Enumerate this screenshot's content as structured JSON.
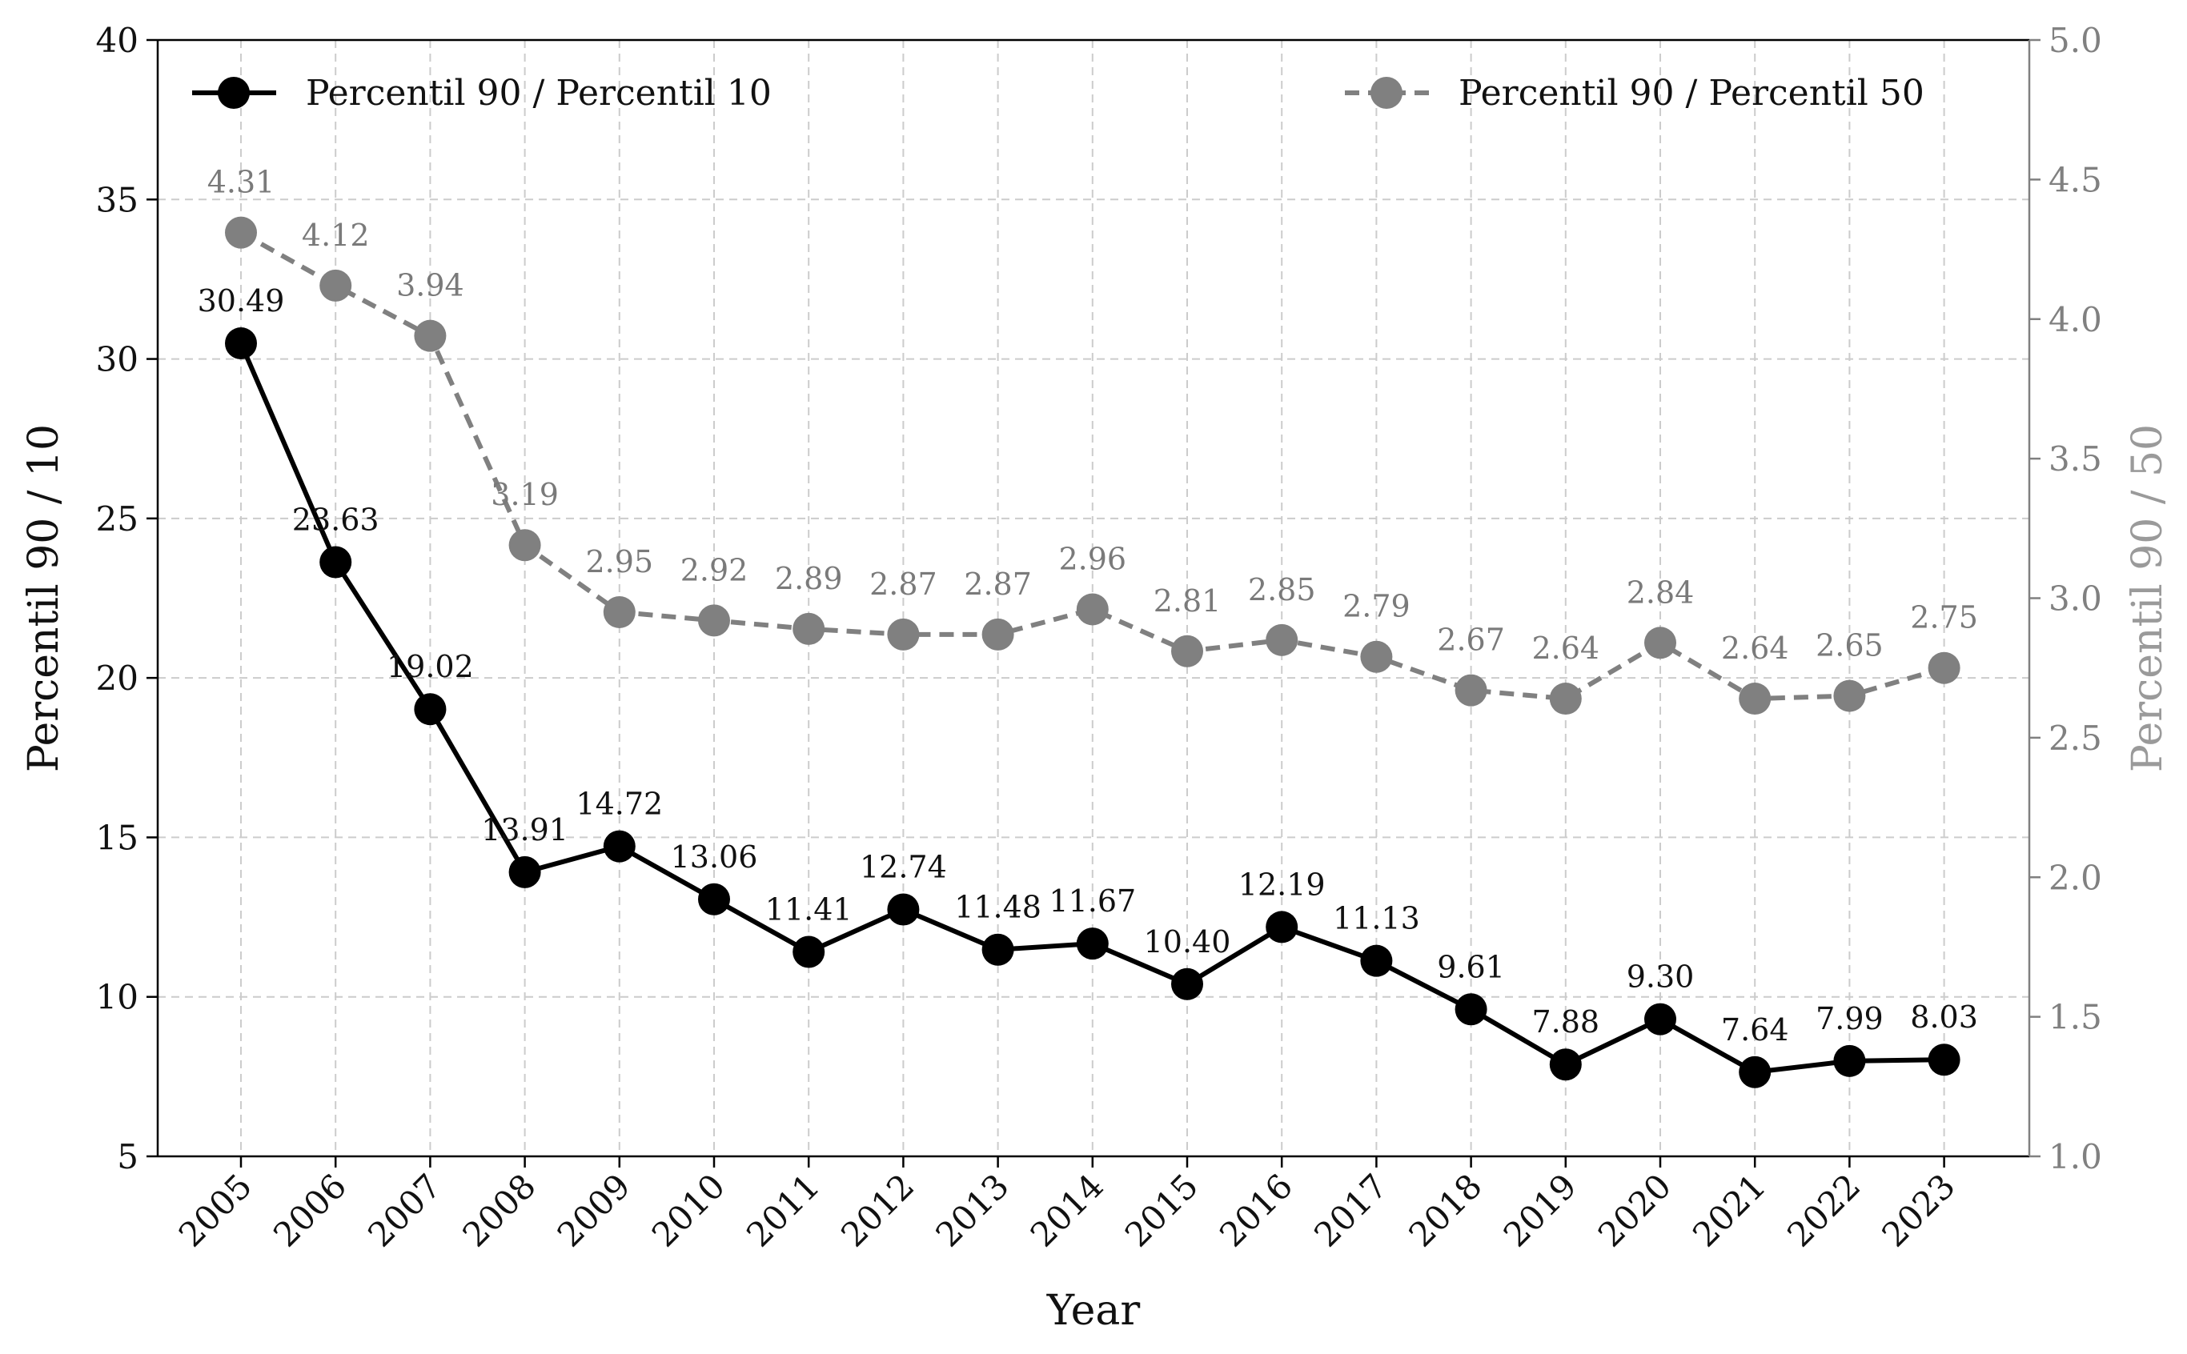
{
  "chart_data": {
    "type": "line",
    "x": [
      2005,
      2006,
      2007,
      2008,
      2009,
      2010,
      2011,
      2012,
      2013,
      2014,
      2015,
      2016,
      2017,
      2018,
      2019,
      2020,
      2021,
      2022,
      2023
    ],
    "xlabel": "Year",
    "ylabel_left": "Percentil 90 / 10",
    "ylabel_right": "Percentil 90 / 50",
    "ylim_left": [
      5,
      40
    ],
    "ylim_right": [
      1.0,
      5.0
    ],
    "yticks_left": [
      "5",
      "10",
      "15",
      "20",
      "25",
      "30",
      "35",
      "40"
    ],
    "yticks_right": [
      "1.0",
      "1.5",
      "2.0",
      "2.5",
      "3.0",
      "3.5",
      "4.0",
      "4.5",
      "5.0"
    ],
    "grid": true,
    "series": [
      {
        "name": "Percentil 90 / Percentil 10",
        "axis": "left",
        "color": "#000000",
        "line_style": "solid",
        "legend_position": "top-left",
        "values": [
          30.49,
          23.63,
          19.02,
          13.91,
          14.72,
          13.06,
          11.41,
          12.74,
          11.48,
          11.67,
          10.4,
          12.19,
          11.13,
          9.61,
          7.88,
          9.3,
          7.64,
          7.99,
          8.03
        ],
        "labels": [
          "30.49",
          "23.63",
          "19.02",
          "13.91",
          "14.72",
          "13.06",
          "11.41",
          "12.74",
          "11.48",
          "11.67",
          "10.40",
          "12.19",
          "11.13",
          "9.61",
          "7.88",
          "9.30",
          "7.64",
          "7.99",
          "8.03"
        ]
      },
      {
        "name": "Percentil 90 / Percentil 50",
        "axis": "right",
        "color": "#808080",
        "line_style": "dashed",
        "legend_position": "top-right",
        "values": [
          4.31,
          4.12,
          3.94,
          3.19,
          2.95,
          2.92,
          2.89,
          2.87,
          2.87,
          2.96,
          2.81,
          2.85,
          2.79,
          2.67,
          2.64,
          2.84,
          2.64,
          2.65,
          2.75
        ],
        "labels": [
          "4.31",
          "4.12",
          "3.94",
          "3.19",
          "2.95",
          "2.92",
          "2.89",
          "2.87",
          "2.87",
          "2.96",
          "2.81",
          "2.85",
          "2.79",
          "2.67",
          "2.64",
          "2.84",
          "2.64",
          "2.65",
          "2.75"
        ]
      }
    ]
  }
}
